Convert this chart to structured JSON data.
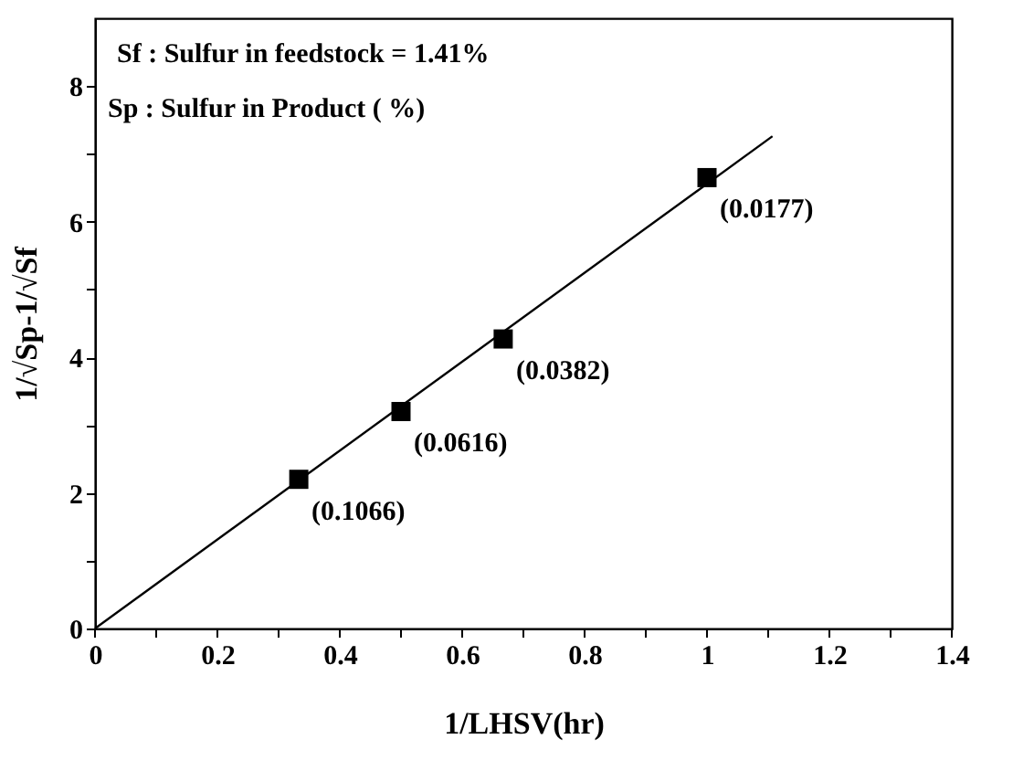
{
  "chart_data": {
    "type": "scatter",
    "xlabel": "1/LHSV(hr)",
    "ylabel": "1/√Sp-1/√Sf",
    "xlim": [
      0,
      1.4
    ],
    "ylim": [
      0,
      9
    ],
    "xticks": [
      0,
      {
        "value": 0.1,
        "label": null
      },
      0.2,
      {
        "value": 0.3,
        "label": null
      },
      0.4,
      {
        "value": 0.5,
        "label": null
      },
      0.6,
      {
        "value": 0.7,
        "label": null
      },
      0.8,
      {
        "value": 0.9,
        "label": null
      },
      1,
      {
        "value": 1.1,
        "label": null
      },
      1.2,
      {
        "value": 1.3,
        "label": null
      },
      1.4
    ],
    "yticks": [
      0,
      {
        "value": 1,
        "label": null
      },
      2,
      {
        "value": 3,
        "label": null
      },
      4,
      {
        "value": 5,
        "label": null
      },
      6,
      {
        "value": 7,
        "label": null
      },
      8
    ],
    "grid": false,
    "series": [
      {
        "marker": "square",
        "color": "#000000",
        "x": [
          0.333,
          0.5,
          0.667,
          1.0
        ],
        "values": [
          2.2,
          3.2,
          4.27,
          6.65
        ]
      },
      {
        "type": "line",
        "line_style": "solid",
        "color": "#000000",
        "x": [
          0,
          1.107
        ],
        "values": [
          0,
          7.26
        ]
      }
    ],
    "annotations": [
      "Sf : Sulfur in feedstock = 1.41%",
      "Sp : Sulfur in Product (   %)",
      {
        "text": "(0.1066)",
        "x": 0.333,
        "y": 2.2
      },
      {
        "text": "(0.0616)",
        "x": 0.5,
        "y": 3.2
      },
      {
        "text": "(0.0382)",
        "x": 0.667,
        "y": 4.27
      },
      {
        "text": "(0.0177)",
        "x": 1.0,
        "y": 6.65
      }
    ]
  }
}
